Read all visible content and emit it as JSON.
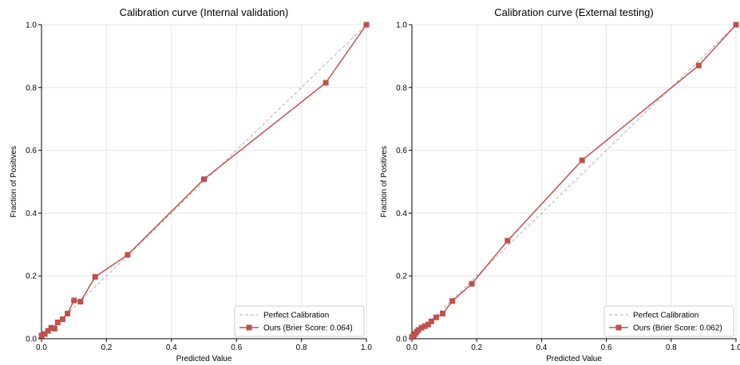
{
  "chart_data": [
    {
      "type": "line",
      "title": "Calibration curve (Internal validation)",
      "xlabel": "Predicted Value",
      "ylabel": "Fraction of Positives",
      "xlim": [
        0,
        1
      ],
      "ylim": [
        0,
        1
      ],
      "xticks": [
        "0.0",
        "0.2",
        "0.4",
        "0.6",
        "0.8",
        "1.0"
      ],
      "yticks": [
        "0.0",
        "0.2",
        "0.4",
        "0.6",
        "0.8",
        "1.0"
      ],
      "grid": true,
      "legend_position": "bottom-right",
      "series": [
        {
          "name": "Perfect Calibration",
          "style": "dashed",
          "color": "#b0b0b0",
          "x": [
            0,
            1
          ],
          "y": [
            0,
            1
          ]
        },
        {
          "name": "Ours (Brier Score: 0.064)",
          "style": "solid-square",
          "color": "#c0504d",
          "x": [
            0.0,
            0.01,
            0.02,
            0.03,
            0.04,
            0.05,
            0.065,
            0.08,
            0.1,
            0.12,
            0.165,
            0.265,
            0.5,
            0.875,
            1.0
          ],
          "y": [
            0.01,
            0.015,
            0.025,
            0.035,
            0.032,
            0.052,
            0.062,
            0.08,
            0.122,
            0.118,
            0.197,
            0.267,
            0.508,
            0.815,
            1.0
          ]
        }
      ]
    },
    {
      "type": "line",
      "title": "Calibration curve (External testing)",
      "xlabel": "Predicted Value",
      "ylabel": "Fraction of Positives",
      "xlim": [
        0,
        1
      ],
      "ylim": [
        0,
        1
      ],
      "xticks": [
        "0.0",
        "0.2",
        "0.4",
        "0.6",
        "0.8",
        "1.0"
      ],
      "yticks": [
        "0.0",
        "0.2",
        "0.4",
        "0.6",
        "0.8",
        "1.0"
      ],
      "grid": true,
      "legend_position": "bottom-right",
      "series": [
        {
          "name": "Perfect Calibration",
          "style": "dashed",
          "color": "#b0b0b0",
          "x": [
            0,
            1
          ],
          "y": [
            0,
            1
          ]
        },
        {
          "name": "Ours (Brier Score: 0.062)",
          "style": "solid-square",
          "color": "#c0504d",
          "x": [
            0.0,
            0.005,
            0.01,
            0.015,
            0.02,
            0.03,
            0.04,
            0.05,
            0.06,
            0.075,
            0.095,
            0.125,
            0.185,
            0.295,
            0.525,
            0.885,
            1.0
          ],
          "y": [
            0.005,
            0.01,
            0.015,
            0.022,
            0.028,
            0.035,
            0.04,
            0.045,
            0.055,
            0.068,
            0.08,
            0.12,
            0.175,
            0.312,
            0.568,
            0.87,
            1.0
          ]
        }
      ]
    }
  ]
}
